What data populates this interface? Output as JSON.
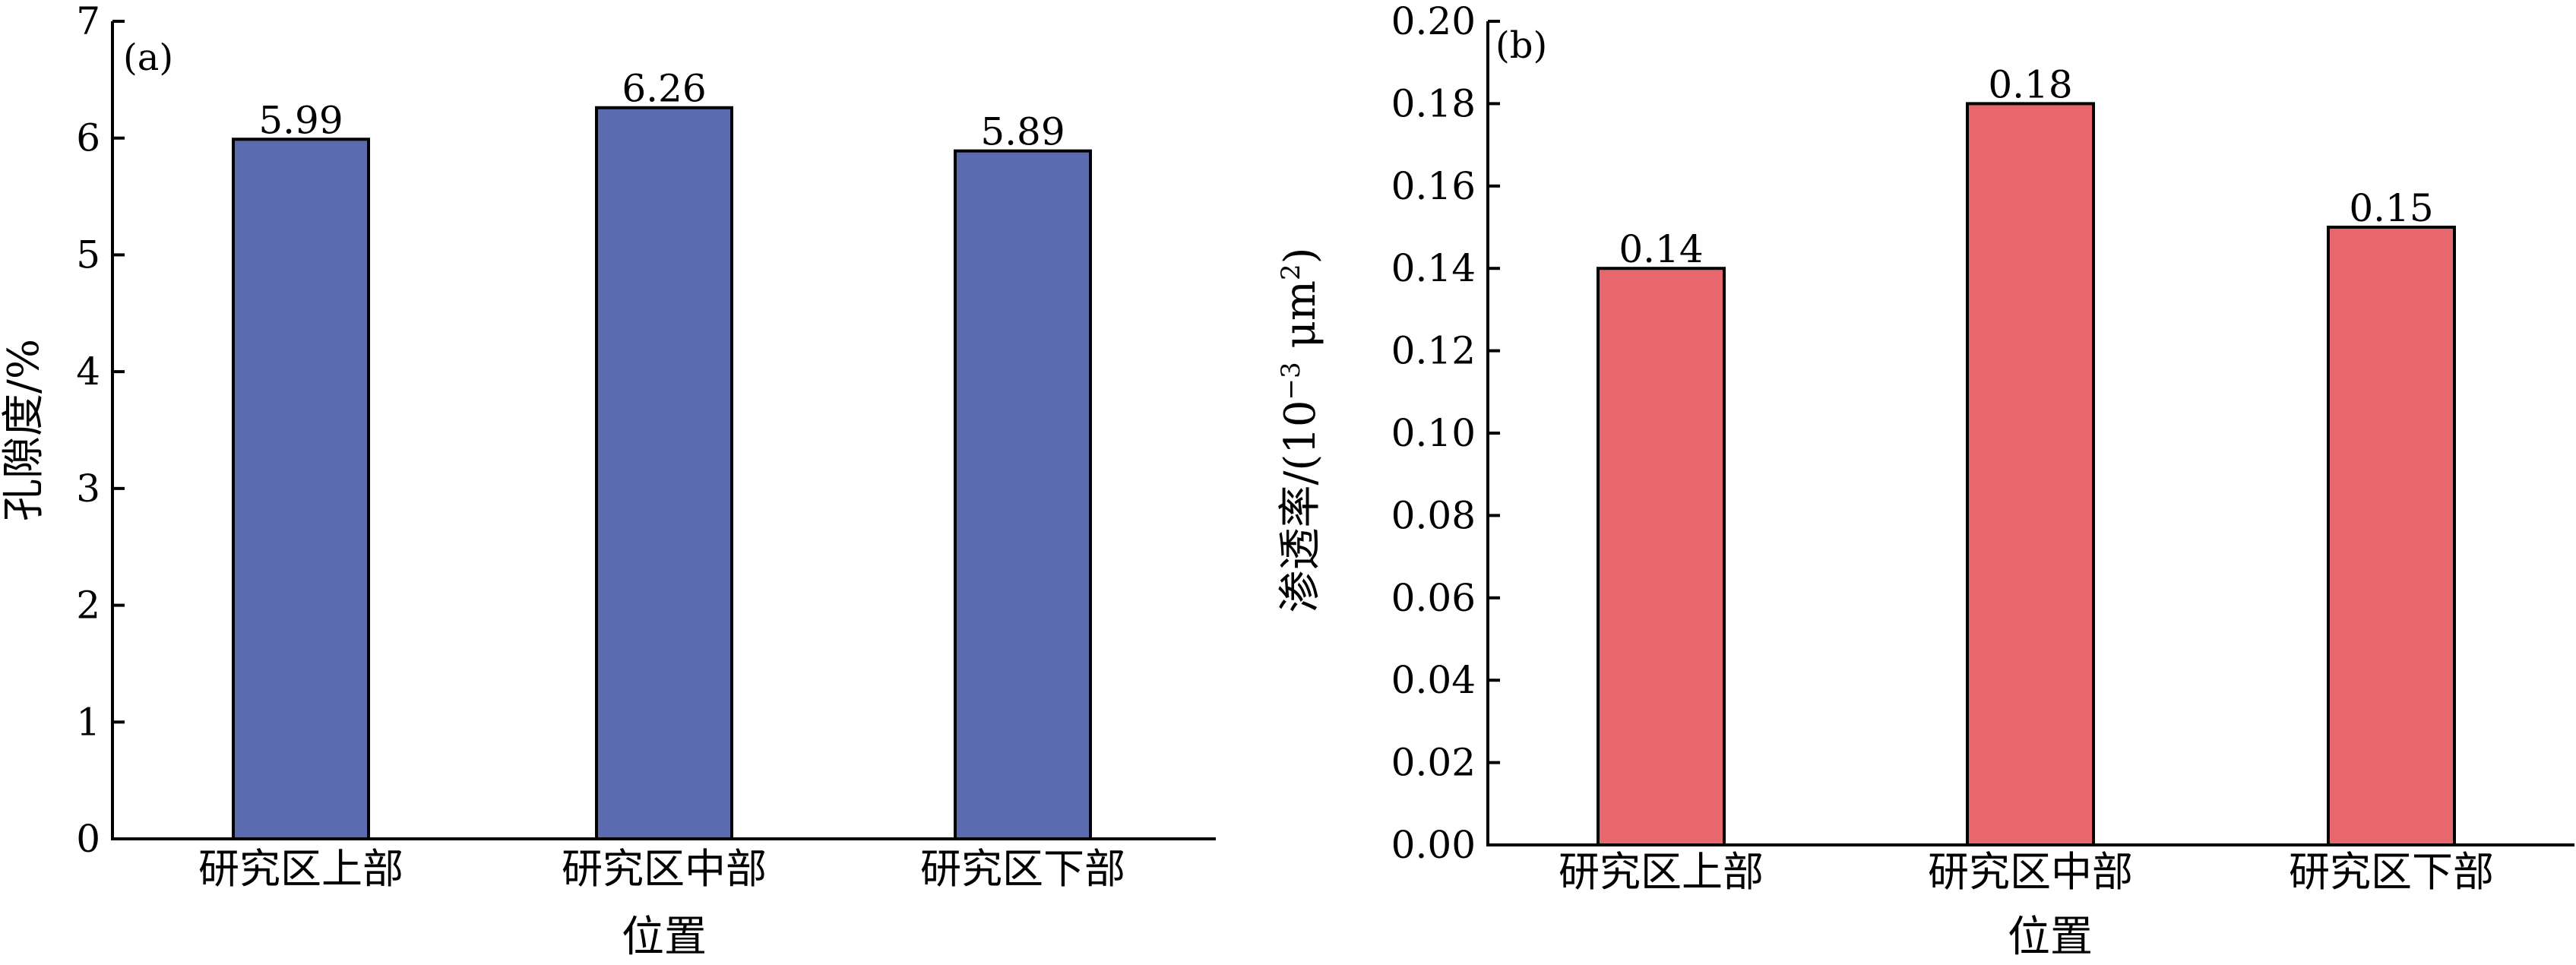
{
  "chart_data": [
    {
      "type": "bar",
      "panel_label": "(a)",
      "categories": [
        "研究区上部",
        "研究区中部",
        "研究区下部"
      ],
      "values": [
        5.99,
        6.26,
        5.89
      ],
      "data_labels": [
        "5.99",
        "6.26",
        "5.89"
      ],
      "xlabel": "位置",
      "ylabel": "孔隙度/%",
      "ylim": [
        0,
        7
      ],
      "yticks": [
        "0",
        "1",
        "2",
        "3",
        "4",
        "5",
        "6",
        "7"
      ],
      "bar_color": "#5b6bb0",
      "grid": false
    },
    {
      "type": "bar",
      "panel_label": "(b)",
      "categories": [
        "研究区上部",
        "研究区中部",
        "研究区下部"
      ],
      "values": [
        0.14,
        0.18,
        0.15
      ],
      "data_labels": [
        "0.14",
        "0.18",
        "0.15"
      ],
      "xlabel": "位置",
      "ylabel_main": "渗透率/(10",
      "ylabel_sup1": "−3",
      "ylabel_mid": " μm",
      "ylabel_sup2": "2",
      "ylabel_end": ")",
      "ylim": [
        0,
        0.2
      ],
      "yticks": [
        "0.00",
        "0.02",
        "0.04",
        "0.06",
        "0.08",
        "0.10",
        "0.12",
        "0.14",
        "0.16",
        "0.18",
        "0.20"
      ],
      "bar_color": "#e8676c",
      "grid": false
    }
  ]
}
